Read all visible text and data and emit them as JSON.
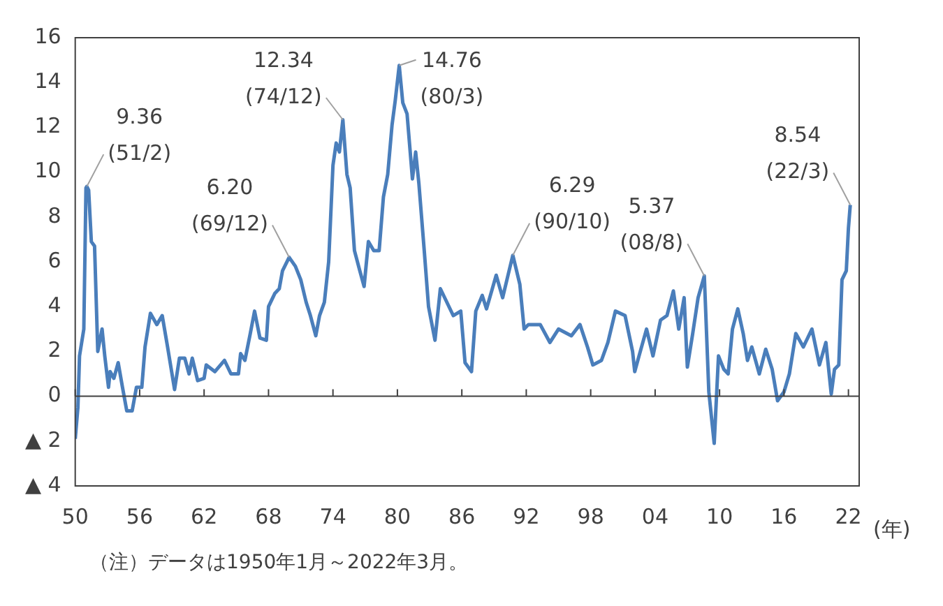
{
  "chart_data": {
    "type": "line",
    "xlabel": "(年)",
    "x": [
      1950.0,
      1950.25,
      1950.4,
      1950.8,
      1951.0,
      1951.08,
      1951.25,
      1951.5,
      1951.8,
      1952.1,
      1952.5,
      1952.75,
      1953.1,
      1953.25,
      1953.6,
      1954.0,
      1954.4,
      1954.8,
      1955.3,
      1955.7,
      1956.2,
      1956.5,
      1957.0,
      1957.6,
      1958.1,
      1958.6,
      1959.25,
      1959.7,
      1960.2,
      1960.6,
      1960.9,
      1961.4,
      1962.0,
      1962.2,
      1963.0,
      1963.9,
      1964.5,
      1965.2,
      1965.4,
      1965.8,
      1966.3,
      1966.7,
      1967.2,
      1967.8,
      1968.0,
      1968.6,
      1969.0,
      1969.3,
      1969.92,
      1970.5,
      1971.0,
      1971.5,
      1971.9,
      1972.4,
      1972.75,
      1973.2,
      1973.6,
      1974.0,
      1974.3,
      1974.6,
      1974.92,
      1975.3,
      1975.6,
      1976.0,
      1976.5,
      1976.9,
      1977.3,
      1977.8,
      1978.3,
      1978.7,
      1979.1,
      1979.5,
      1979.8,
      1980.17,
      1980.5,
      1980.9,
      1981.4,
      1981.7,
      1982.0,
      1982.5,
      1982.9,
      1983.5,
      1984.0,
      1984.6,
      1985.2,
      1985.9,
      1986.3,
      1986.9,
      1987.3,
      1987.9,
      1988.3,
      1989.2,
      1989.8,
      1990.3,
      1990.75,
      1991.4,
      1991.8,
      1992.2,
      1993.3,
      1994.2,
      1995.0,
      1996.2,
      1997.0,
      1997.7,
      1998.2,
      1999.0,
      1999.6,
      2000.3,
      2001.2,
      2001.9,
      2002.1,
      2002.5,
      2003.2,
      2003.8,
      2004.5,
      2005.1,
      2005.7,
      2006.2,
      2006.7,
      2007.0,
      2007.5,
      2008.0,
      2008.58,
      2009.0,
      2009.5,
      2009.9,
      2010.4,
      2010.8,
      2011.2,
      2011.7,
      2012.2,
      2012.6,
      2013.0,
      2013.7,
      2014.3,
      2014.9,
      2015.4,
      2016.0,
      2016.5,
      2017.1,
      2017.8,
      2018.6,
      2019.3,
      2019.9,
      2020.4,
      2020.7,
      2021.1,
      2021.4,
      2021.8,
      2022.0,
      2022.17
    ],
    "series": [
      {
        "color": "#4a7ebb",
        "values": [
          -1.9,
          -0.5,
          1.8,
          3.0,
          9.3,
          9.36,
          9.2,
          6.9,
          6.7,
          2.0,
          3.0,
          1.8,
          0.4,
          1.1,
          0.8,
          1.5,
          0.4,
          -0.65,
          -0.65,
          0.4,
          0.4,
          2.2,
          3.7,
          3.2,
          3.6,
          2.2,
          0.3,
          1.7,
          1.7,
          1.0,
          1.7,
          0.7,
          0.8,
          1.4,
          1.1,
          1.6,
          1.0,
          1.0,
          1.9,
          1.6,
          2.8,
          3.8,
          2.6,
          2.5,
          4.0,
          4.6,
          4.8,
          5.6,
          6.2,
          5.8,
          5.2,
          4.2,
          3.6,
          2.7,
          3.6,
          4.2,
          6.0,
          10.3,
          11.3,
          10.9,
          12.34,
          9.9,
          9.3,
          6.5,
          5.6,
          4.9,
          6.9,
          6.5,
          6.5,
          8.9,
          9.9,
          12.1,
          13.2,
          14.76,
          13.1,
          12.6,
          9.7,
          10.9,
          9.5,
          6.5,
          4.0,
          2.5,
          4.8,
          4.2,
          3.6,
          3.8,
          1.5,
          1.1,
          3.8,
          4.5,
          3.9,
          5.4,
          4.4,
          5.4,
          6.29,
          5.0,
          3.0,
          3.2,
          3.2,
          2.4,
          3.0,
          2.7,
          3.2,
          2.2,
          1.4,
          1.6,
          2.4,
          3.8,
          3.6,
          2.0,
          1.1,
          1.8,
          3.0,
          1.8,
          3.4,
          3.6,
          4.7,
          3.0,
          4.4,
          1.3,
          2.8,
          4.4,
          5.37,
          0.2,
          -2.1,
          1.8,
          1.2,
          1.0,
          3.0,
          3.9,
          2.8,
          1.6,
          2.2,
          1.0,
          2.1,
          1.2,
          -0.2,
          0.2,
          1.0,
          2.8,
          2.2,
          3.0,
          1.4,
          2.4,
          0.1,
          1.2,
          1.4,
          5.2,
          5.6,
          7.5,
          8.54
        ]
      }
    ],
    "xlim": [
      1950,
      2023
    ],
    "xticks": [
      {
        "value": 1950,
        "label": "50"
      },
      {
        "value": 1956,
        "label": "56"
      },
      {
        "value": 1962,
        "label": "62"
      },
      {
        "value": 1968,
        "label": "68"
      },
      {
        "value": 1974,
        "label": "74"
      },
      {
        "value": 1980,
        "label": "80"
      },
      {
        "value": 1986,
        "label": "86"
      },
      {
        "value": 1992,
        "label": "92"
      },
      {
        "value": 1998,
        "label": "98"
      },
      {
        "value": 2004,
        "label": "04"
      },
      {
        "value": 2010,
        "label": "10"
      },
      {
        "value": 2016,
        "label": "16"
      },
      {
        "value": 2022,
        "label": "22"
      }
    ],
    "ylim": [
      -4,
      16
    ],
    "yticks": [
      {
        "value": -4,
        "label": "▲ 4"
      },
      {
        "value": -2,
        "label": "▲ 2"
      },
      0,
      2,
      4,
      6,
      8,
      10,
      12,
      14,
      16
    ],
    "annotations": [
      {
        "text": "9.36\n(51/2)",
        "x": 1951.08,
        "y": 9.36
      },
      {
        "text": "6.20\n(69/12)",
        "x": 1969.92,
        "y": 6.2
      },
      {
        "text": "12.34\n(74/12)",
        "x": 1974.92,
        "y": 12.34
      },
      {
        "text": "14.76\n(80/3)",
        "x": 1980.17,
        "y": 14.76
      },
      {
        "text": "6.29\n(90/10)",
        "x": 1990.75,
        "y": 6.29
      },
      {
        "text": "5.37\n(08/8)",
        "x": 2008.58,
        "y": 5.37
      },
      {
        "text": "8.54\n(22/3)",
        "x": 2022.17,
        "y": 8.54
      },
      "（注）データは1950年1月～2022年3月。"
    ]
  }
}
